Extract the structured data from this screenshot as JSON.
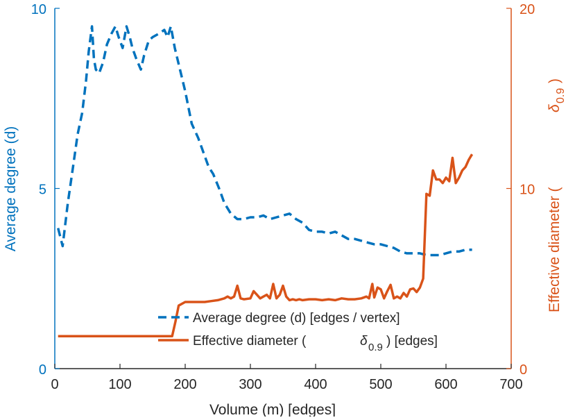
{
  "chart_data": {
    "type": "line",
    "title": "",
    "xlabel": "Volume (m) [edges]",
    "ylabel_left": "Average degree (d)",
    "ylabel_right": "Effective diameter (",
    "ylabel_right_symbol": "δ",
    "ylabel_right_sub": "0.9",
    "ylabel_right_close": ")",
    "xlim": [
      0,
      700
    ],
    "ylim_left": [
      0,
      10
    ],
    "ylim_right": [
      0,
      20
    ],
    "xticks": [
      0,
      100,
      200,
      300,
      400,
      500,
      600,
      700
    ],
    "yticks_left": [
      0,
      5,
      10
    ],
    "yticks_right": [
      0,
      10,
      20
    ],
    "grid": false,
    "legend_position": "bottom-center",
    "colors": {
      "left": "#0072BD",
      "right": "#D95319",
      "axis": "#262626"
    },
    "series": [
      {
        "name": "Average degree (d) [edges / vertex]",
        "legend_text": "Average degree (d) [edges / vertex]",
        "axis": "left",
        "style": "dashed",
        "x": [
          5,
          12,
          20,
          28,
          35,
          42,
          48,
          52,
          57,
          60,
          63,
          68,
          74,
          80,
          87,
          93,
          98,
          104,
          110,
          115,
          119,
          125,
          132,
          137,
          144,
          150,
          160,
          168,
          173,
          178,
          184,
          192,
          200,
          210,
          220,
          228,
          236,
          243,
          252,
          260,
          270,
          280,
          290,
          300,
          310,
          320,
          330,
          340,
          350,
          360,
          370,
          380,
          390,
          400,
          410,
          420,
          430,
          440,
          450,
          460,
          470,
          480,
          490,
          500,
          510,
          520,
          530,
          540,
          550,
          560,
          570,
          580,
          590,
          600,
          610,
          620,
          630,
          640
        ],
        "y": [
          3.9,
          3.4,
          4.6,
          5.6,
          6.5,
          7.1,
          8.0,
          8.8,
          9.5,
          8.6,
          8.3,
          8.2,
          8.5,
          9.0,
          9.3,
          9.5,
          9.2,
          8.9,
          9.5,
          9.2,
          8.9,
          8.6,
          8.3,
          8.7,
          9.1,
          9.2,
          9.3,
          9.4,
          9.2,
          9.5,
          8.9,
          8.3,
          7.7,
          6.8,
          6.4,
          6.0,
          5.6,
          5.4,
          5.0,
          4.6,
          4.3,
          4.15,
          4.15,
          4.2,
          4.2,
          4.25,
          4.15,
          4.2,
          4.25,
          4.3,
          4.15,
          4.05,
          3.85,
          3.8,
          3.8,
          3.75,
          3.8,
          3.7,
          3.6,
          3.6,
          3.55,
          3.5,
          3.45,
          3.45,
          3.4,
          3.35,
          3.25,
          3.2,
          3.2,
          3.2,
          3.15,
          3.15,
          3.15,
          3.2,
          3.25,
          3.25,
          3.3,
          3.3
        ]
      },
      {
        "name": "Effective diameter (δ0.9) [edges]",
        "legend_text_before": "Effective diameter (",
        "legend_symbol": "δ",
        "legend_sub": "0.9",
        "legend_text_after": ") [edges]",
        "axis": "right",
        "style": "solid",
        "x": [
          5,
          180,
          185,
          190,
          200,
          210,
          220,
          230,
          240,
          250,
          260,
          265,
          270,
          275,
          280,
          285,
          290,
          300,
          305,
          310,
          315,
          320,
          325,
          330,
          335,
          340,
          345,
          350,
          355,
          360,
          365,
          370,
          375,
          380,
          390,
          400,
          410,
          420,
          430,
          440,
          450,
          460,
          470,
          478,
          482,
          487,
          490,
          495,
          500,
          505,
          510,
          515,
          520,
          525,
          530,
          535,
          540,
          545,
          550,
          555,
          560,
          565,
          570,
          575,
          580,
          585,
          590,
          595,
          600,
          605,
          610,
          615,
          620,
          625,
          630,
          635,
          640
        ],
        "y": [
          1.8,
          1.8,
          2.6,
          3.5,
          3.7,
          3.7,
          3.7,
          3.7,
          3.75,
          3.8,
          3.9,
          4.0,
          3.9,
          4.0,
          4.6,
          3.9,
          3.85,
          3.9,
          4.3,
          4.1,
          3.9,
          4.0,
          4.1,
          3.9,
          4.7,
          3.9,
          4.1,
          4.6,
          4.0,
          3.8,
          3.85,
          3.8,
          3.85,
          3.8,
          3.85,
          3.85,
          3.8,
          3.85,
          3.8,
          3.9,
          3.85,
          3.85,
          3.9,
          4.0,
          3.9,
          4.7,
          3.95,
          4.5,
          4.4,
          3.9,
          4.3,
          4.65,
          3.9,
          4.0,
          3.9,
          4.2,
          4.0,
          4.4,
          4.45,
          4.25,
          4.5,
          5.0,
          9.7,
          9.6,
          11.0,
          10.5,
          10.5,
          10.3,
          10.6,
          10.4,
          11.7,
          10.3,
          10.6,
          11.0,
          11.2,
          11.6,
          11.9
        ]
      }
    ]
  }
}
